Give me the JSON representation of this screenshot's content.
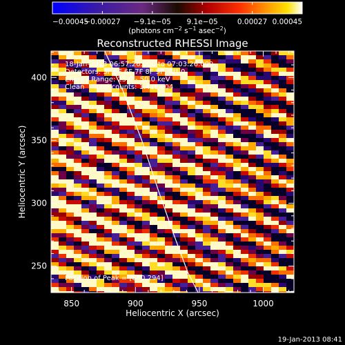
{
  "colorbar": {
    "ticks": [
      "−0.00045",
      "−0.00027",
      "−9.1e−05",
      "9.1e−05",
      "0.00027",
      "0.00045"
    ],
    "unit_parts": [
      "(photons cm",
      "−2",
      " s",
      "−1",
      " asec",
      "−2",
      ")"
    ],
    "range": [
      -0.00045,
      0.00045
    ]
  },
  "title": "Reconstructed RHESSI Image",
  "annotations": {
    "time_range": "18-Jan-2013 06:57:26.000 to 07:03:26.000",
    "detectors": "Detectors: 3F 5F 6F 7F 8F 9F, Att 0",
    "energy": "Energy Range: 25.0 - 50.0 keV",
    "clean": "Clean    Total counts: 1.41E+04",
    "peak": "Position of Peak = [840,294]"
  },
  "footer": "19-Jan-2013 08:41",
  "chart_data": {
    "type": "heatmap",
    "title": "Reconstructed RHESSI Image",
    "xlabel": "Heliocentric X (arcsec)",
    "ylabel": "Heliocentric Y (arcsec)",
    "xlim": [
      834,
      1024
    ],
    "ylim": [
      229,
      421
    ],
    "x_ticks": [
      850,
      900,
      950,
      1000
    ],
    "y_ticks": [
      250,
      300,
      350,
      400
    ],
    "x_tick_labels": [
      "850",
      "900",
      "950",
      "1000"
    ],
    "y_tick_labels": [
      "250",
      "300",
      "350",
      "400"
    ],
    "peak": [
      840,
      294
    ],
    "limb_curve": {
      "x": [
        876,
        890,
        905,
        918,
        930,
        941,
        949
      ],
      "y": [
        421,
        390,
        350,
        310,
        275,
        245,
        229
      ]
    },
    "colormap": "red-temperature (blue negative, white positive)"
  }
}
